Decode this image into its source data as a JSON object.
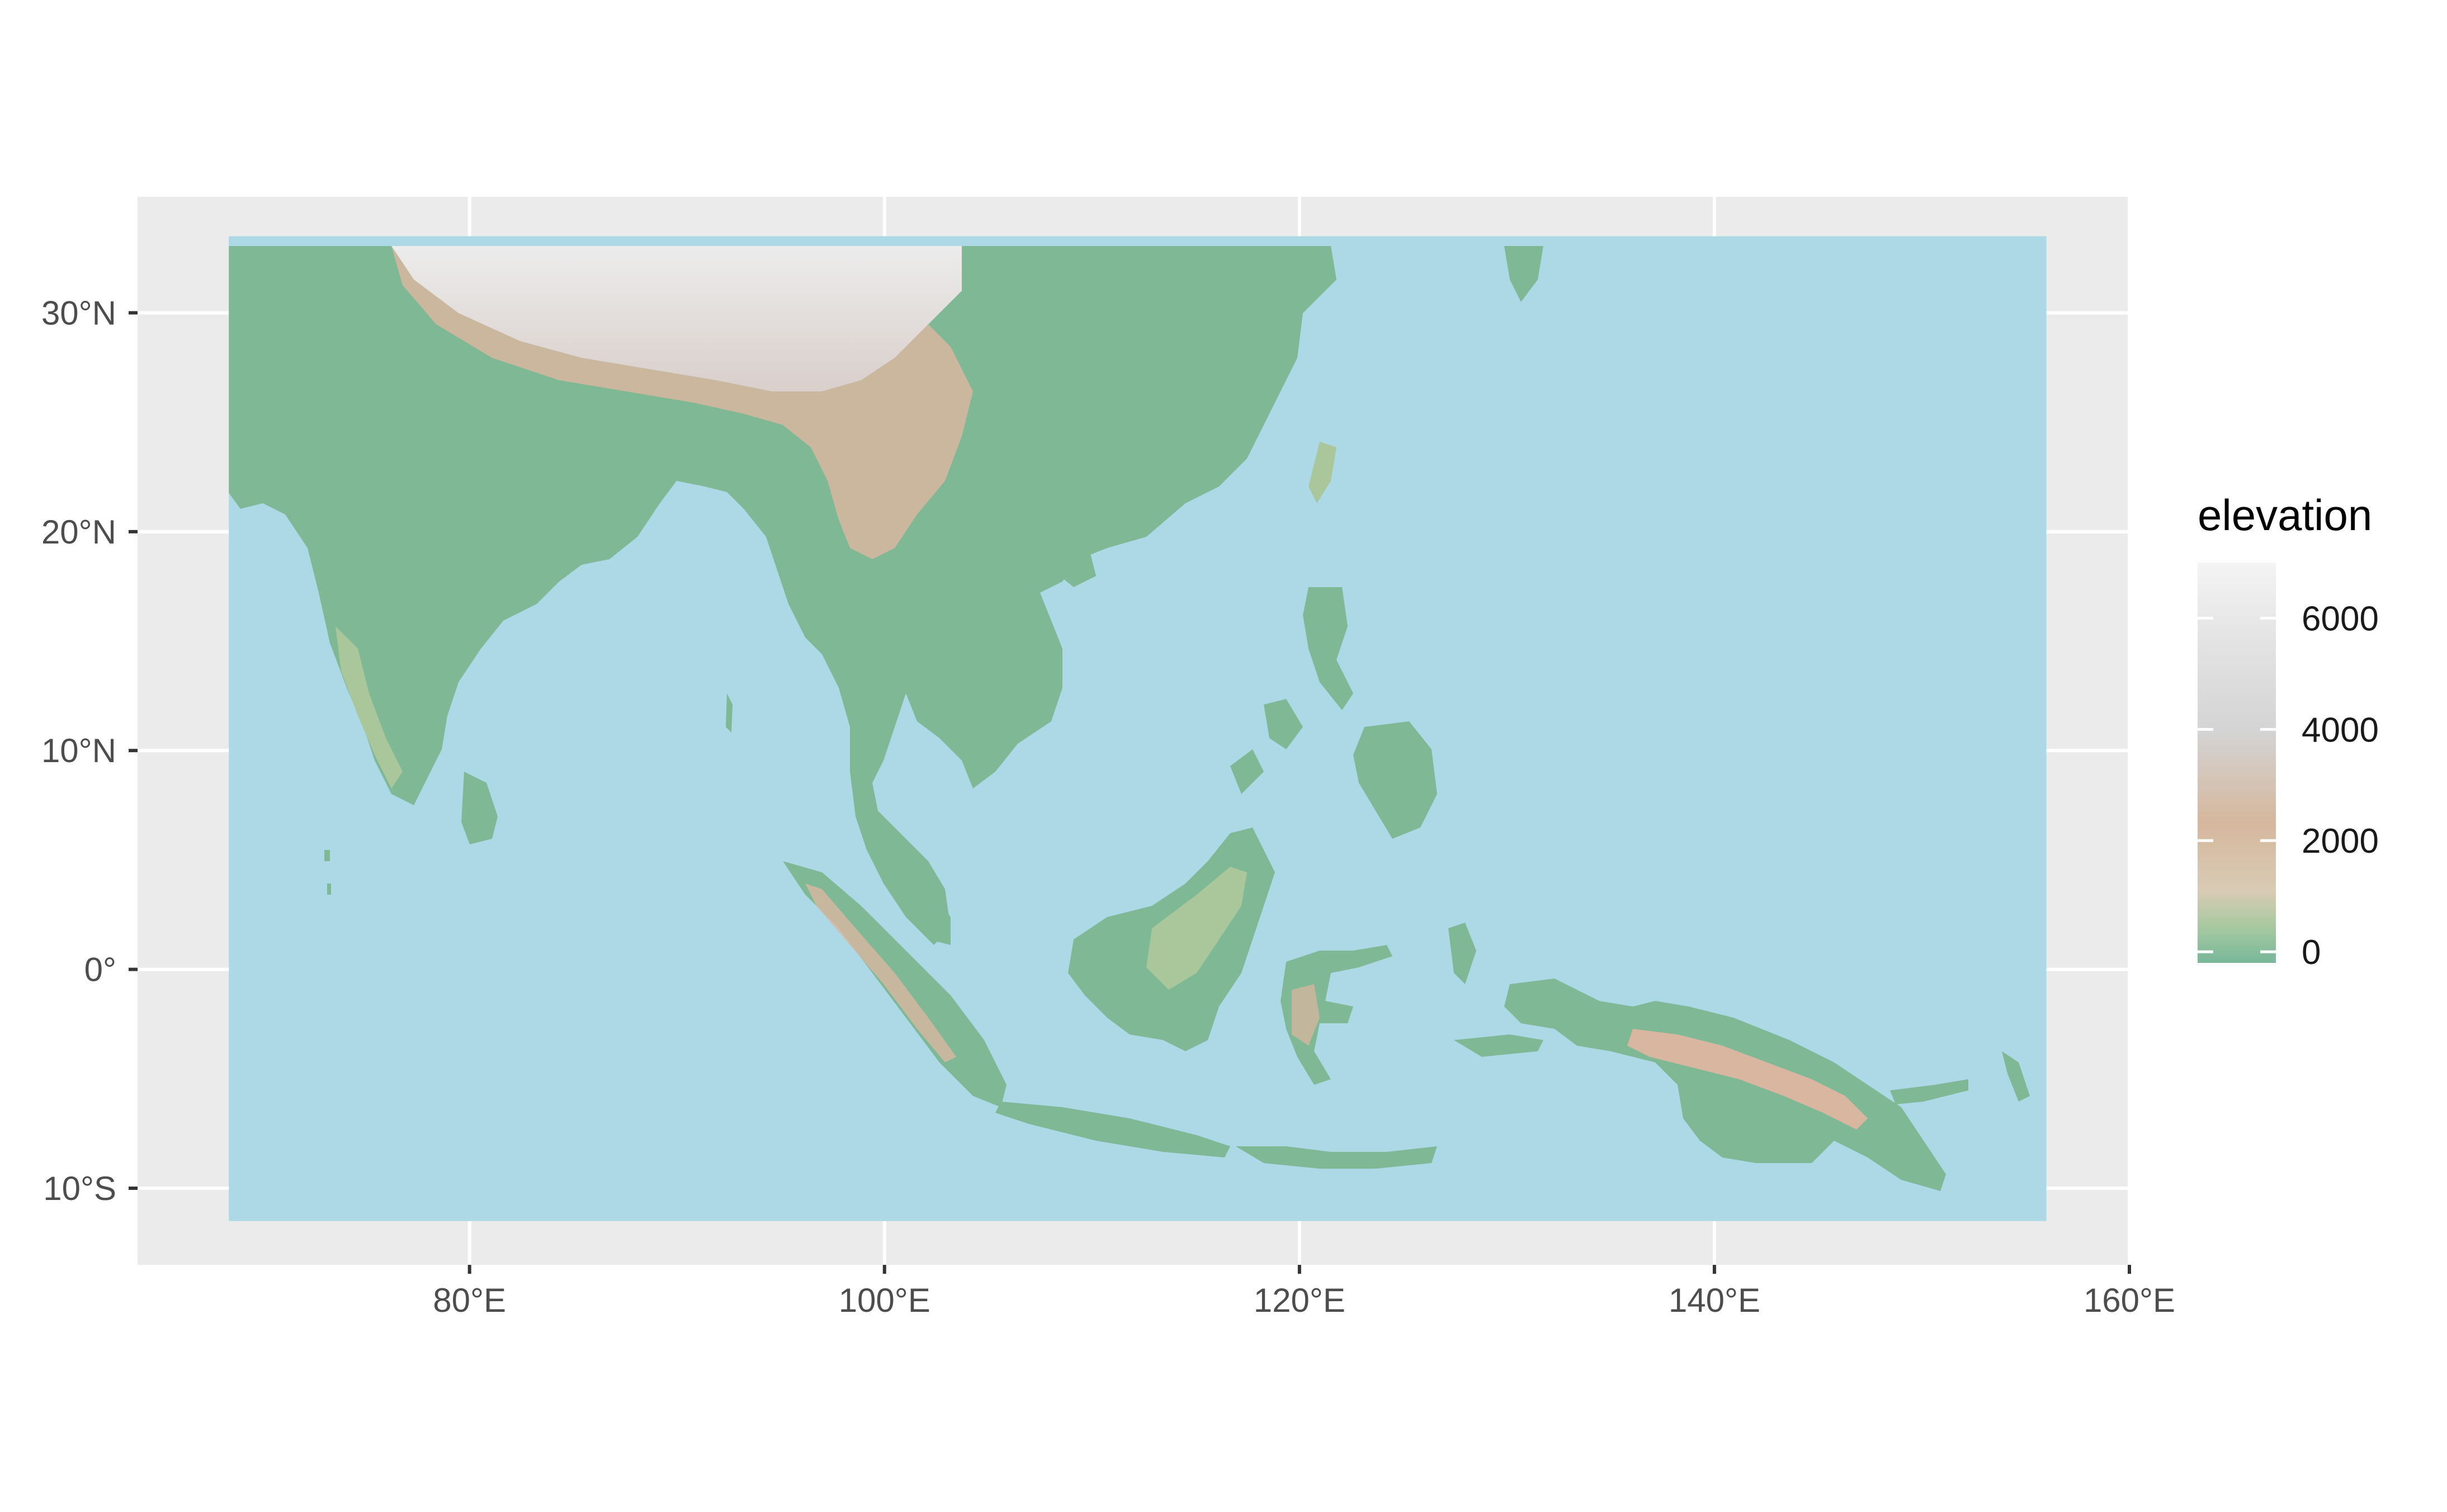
{
  "map": {
    "panel_background": "#ebebeb",
    "grid_color": "#ffffff",
    "ocean_color": "#add8e6",
    "x_ticks": [
      {
        "lon": 80,
        "label": "80°E"
      },
      {
        "lon": 100,
        "label": "100°E"
      },
      {
        "lon": 120,
        "label": "120°E"
      },
      {
        "lon": 140,
        "label": "140°E"
      },
      {
        "lon": 160,
        "label": "160°E"
      }
    ],
    "y_ticks": [
      {
        "lat": 30,
        "label": "30°N"
      },
      {
        "lat": 20,
        "label": "20°N"
      },
      {
        "lat": 10,
        "label": "10°N"
      },
      {
        "lat": 0,
        "label": "0°"
      },
      {
        "lat": -10,
        "label": "10°S"
      }
    ],
    "lon_range": [
      64,
      160
    ],
    "lat_range": [
      -13.5,
      35.3
    ],
    "raster_extent": {
      "lon": [
        68.4,
        156
      ],
      "lat": [
        -11.5,
        33.5
      ]
    }
  },
  "legend": {
    "title": "elevation",
    "stops": [
      {
        "value": 0,
        "label": "0"
      },
      {
        "value": 2000,
        "label": "2000"
      },
      {
        "value": 4000,
        "label": "4000"
      },
      {
        "value": 6000,
        "label": "6000"
      }
    ],
    "range": [
      -200,
      7000
    ],
    "colors": [
      "#78b79a",
      "#a7c9a0",
      "#d5b79d",
      "#d9c3b2",
      "#d4d4d4",
      "#e6e6e6",
      "#f4f4f4"
    ]
  },
  "land_colors": {
    "lowland": "#7fb895",
    "upland": "#a9c79b",
    "highland": "#d8b6a0",
    "plateau": "#e0dcdc"
  }
}
